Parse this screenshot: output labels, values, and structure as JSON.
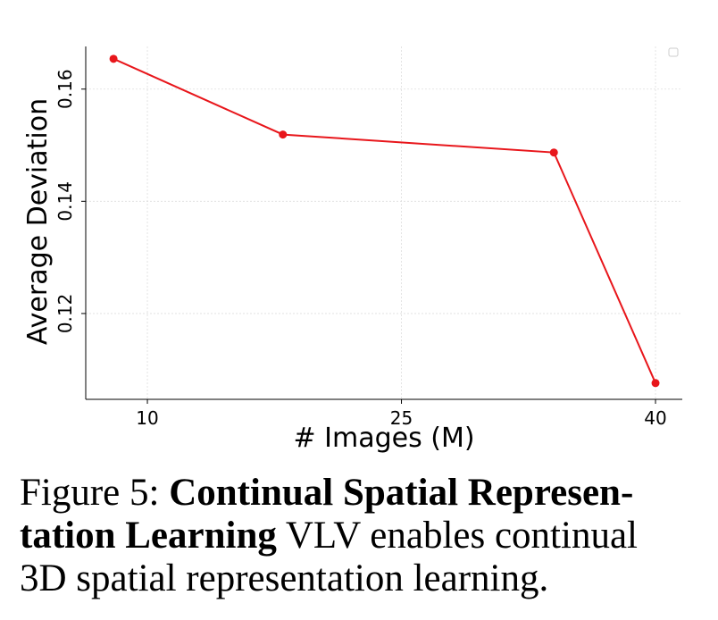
{
  "chart_data": {
    "type": "line",
    "x": [
      8,
      18,
      34,
      40
    ],
    "series": [
      {
        "color": "#e8161b",
        "values": [
          0.1654,
          0.1519,
          0.1487,
          0.1076
        ]
      }
    ],
    "xlabel": "# Images (M)",
    "ylabel": "Average Deviation",
    "xlim": [
      6.36,
      41.58
    ],
    "ylim": [
      0.1047,
      0.1676
    ],
    "xticks": [
      10,
      25,
      40
    ],
    "yticks": [
      0.12,
      0.14,
      0.16
    ],
    "grid": true,
    "legend": "upper right"
  },
  "caption": {
    "label": "Figure 5:",
    "title_parts": [
      "Continual Spatial Represen-",
      "tation Learning"
    ],
    "text_parts": [
      "VLV enables continual",
      "3D spatial representation learning."
    ]
  }
}
